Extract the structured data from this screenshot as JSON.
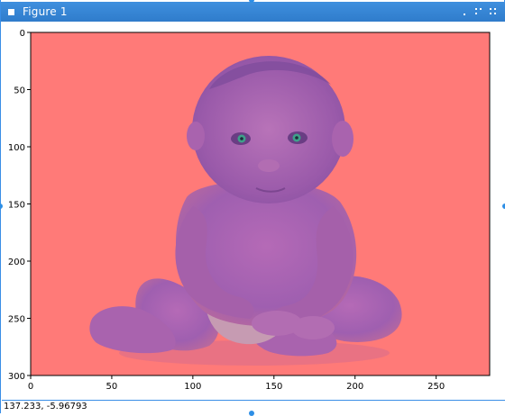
{
  "window": {
    "title": "Figure 1",
    "title_bar_color": "#3a87d8"
  },
  "plot": {
    "x_ticks": [
      "0",
      "50",
      "100",
      "150",
      "200",
      "250"
    ],
    "y_ticks": [
      "0",
      "50",
      "100",
      "150",
      "200",
      "250",
      "300"
    ],
    "xlim": [
      0,
      283
    ],
    "ylim": [
      300,
      0
    ],
    "image_tint": "#ff7a78"
  },
  "status": {
    "coordinates": "137.233, -5.96793"
  }
}
